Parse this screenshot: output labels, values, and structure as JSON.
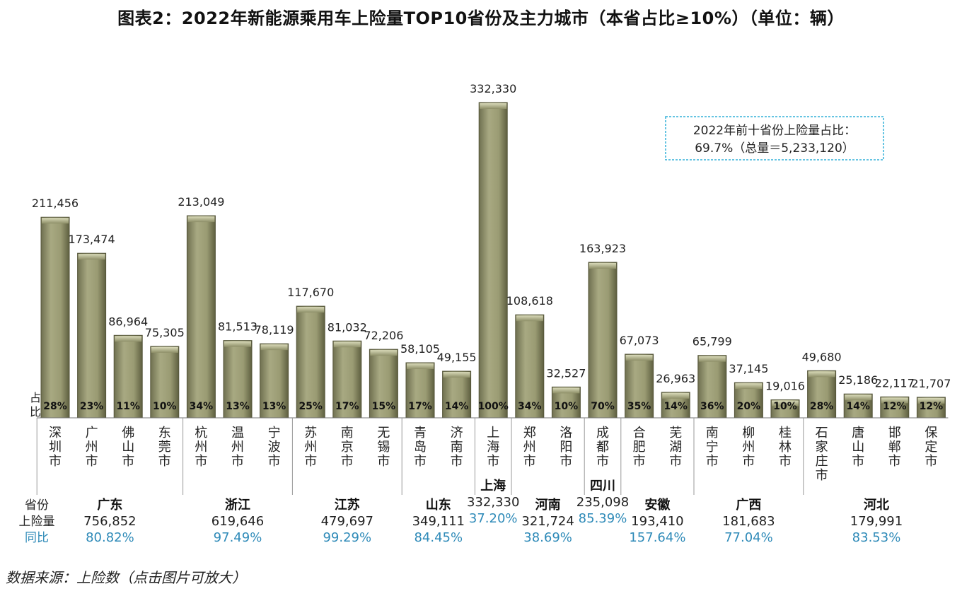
{
  "title": "图表2：2022年新能源乘用车上险量TOP10省份及主力城市（本省占比≥10%）（单位：辆）",
  "source": "数据来源：上险数（点击图片可放大）",
  "note_box": {
    "line1": "2022年前十省份上险量占比：",
    "line2": "69.7%（总量＝5,233,120）"
  },
  "row_labels": {
    "share_axis": "占比",
    "province": "省份",
    "volume": "上险量",
    "yoy": "同比"
  },
  "colors": {
    "bar": "#9a9b73",
    "bar_edge": "#5a5b3c",
    "yoy_text": "#2e8ab8",
    "note_border": "#32b0d8"
  },
  "chart_data": {
    "type": "bar",
    "title": "图表2：2022年新能源乘用车上险量TOP10省份及主力城市（本省占比≥10%）（单位：辆）",
    "ylim": [
      0,
      340000
    ],
    "grid": false,
    "cities": [
      {
        "name": "深圳市",
        "value": 211456,
        "label": "211,456",
        "share": "28%"
      },
      {
        "name": "广州市",
        "value": 173474,
        "label": "173,474",
        "share": "23%"
      },
      {
        "name": "佛山市",
        "value": 86964,
        "label": "86,964",
        "share": "11%"
      },
      {
        "name": "东莞市",
        "value": 75305,
        "label": "75,305",
        "share": "10%"
      },
      {
        "name": "杭州市",
        "value": 213049,
        "label": "213,049",
        "share": "34%"
      },
      {
        "name": "温州市",
        "value": 81513,
        "label": "81,513",
        "share": "13%"
      },
      {
        "name": "宁波市",
        "value": 78119,
        "label": "78,119",
        "share": "13%"
      },
      {
        "name": "苏州市",
        "value": 117670,
        "label": "117,670",
        "share": "25%"
      },
      {
        "name": "南京市",
        "value": 81032,
        "label": "81,032",
        "share": "17%"
      },
      {
        "name": "无锡市",
        "value": 72206,
        "label": "72,206",
        "share": "15%"
      },
      {
        "name": "青岛市",
        "value": 58105,
        "label": "58,105",
        "share": "17%"
      },
      {
        "name": "济南市",
        "value": 49155,
        "label": "49,155",
        "share": "14%"
      },
      {
        "name": "上海市",
        "value": 332330,
        "label": "332,330",
        "share": "100%"
      },
      {
        "name": "郑州市",
        "value": 108618,
        "label": "108,618",
        "share": "34%"
      },
      {
        "name": "洛阳市",
        "value": 32527,
        "label": "32,527",
        "share": "10%"
      },
      {
        "name": "成都市",
        "value": 163923,
        "label": "163,923",
        "share": "70%"
      },
      {
        "name": "合肥市",
        "value": 67073,
        "label": "67,073",
        "share": "35%"
      },
      {
        "name": "芜湖市",
        "value": 26963,
        "label": "26,963",
        "share": "14%"
      },
      {
        "name": "南宁市",
        "value": 65799,
        "label": "65,799",
        "share": "36%"
      },
      {
        "name": "柳州市",
        "value": 37145,
        "label": "37,145",
        "share": "20%"
      },
      {
        "name": "桂林市",
        "value": 19016,
        "label": "19,016",
        "share": "10%"
      },
      {
        "name": "石家庄市",
        "value": 49680,
        "label": "49,680",
        "share": "28%"
      },
      {
        "name": "唐山市",
        "value": 25186,
        "label": "25,186",
        "share": "14%"
      },
      {
        "name": "邯郸市",
        "value": 22117,
        "label": "22,117",
        "share": "12%"
      },
      {
        "name": "保定市",
        "value": 21707,
        "label": "21,707",
        "share": "12%"
      }
    ],
    "provinces": [
      {
        "name": "广东",
        "volume": "756,852",
        "yoy": "80.82%",
        "cities": 4
      },
      {
        "name": "浙江",
        "volume": "619,646",
        "yoy": "97.49%",
        "cities": 3
      },
      {
        "name": "江苏",
        "volume": "479,697",
        "yoy": "99.29%",
        "cities": 3
      },
      {
        "name": "山东",
        "volume": "349,111",
        "yoy": "84.45%",
        "cities": 2
      },
      {
        "name": "上海",
        "volume": "332,330",
        "yoy": "37.20%",
        "cities": 1
      },
      {
        "name": "河南",
        "volume": "321,724",
        "yoy": "38.69%",
        "cities": 2
      },
      {
        "name": "四川",
        "volume": "235,098",
        "yoy": "85.39%",
        "cities": 1
      },
      {
        "name": "安徽",
        "volume": "193,410",
        "yoy": "157.64%",
        "cities": 2
      },
      {
        "name": "广西",
        "volume": "181,683",
        "yoy": "77.04%",
        "cities": 3
      },
      {
        "name": "河北",
        "volume": "179,991",
        "yoy": "83.53%",
        "cities": 4
      }
    ]
  }
}
